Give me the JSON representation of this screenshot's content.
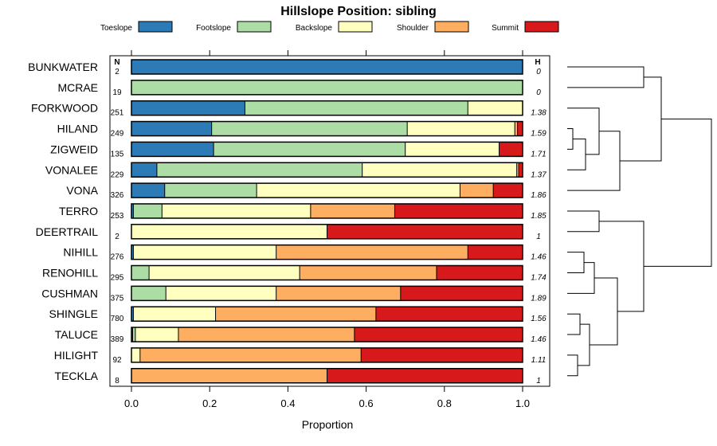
{
  "chart_data": {
    "type": "bar",
    "orientation": "horizontal",
    "stacked": true,
    "title": "Hillslope Position: sibling",
    "xlabel": "Proportion",
    "xlim": [
      0,
      1
    ],
    "xticks": [
      "0.0",
      "0.2",
      "0.4",
      "0.6",
      "0.8",
      "1.0"
    ],
    "n_header": "N",
    "h_header": "H",
    "legend": [
      {
        "name": "Toeslope",
        "color": "#2c7bb6"
      },
      {
        "name": "Footslope",
        "color": "#abdda4"
      },
      {
        "name": "Backslope",
        "color": "#ffffbf"
      },
      {
        "name": "Shoulder",
        "color": "#fdae61"
      },
      {
        "name": "Summit",
        "color": "#d7191c"
      }
    ],
    "rows": [
      {
        "name": "BUNKWATER",
        "n": "2",
        "h": "0",
        "values": [
          1.0,
          0.0,
          0.0,
          0.0,
          0.0
        ]
      },
      {
        "name": "MCRAE",
        "n": "19",
        "h": "0",
        "values": [
          0.0,
          1.0,
          0.0,
          0.0,
          0.0
        ]
      },
      {
        "name": "FORKWOOD",
        "n": "251",
        "h": "1.38",
        "values": [
          0.29,
          0.57,
          0.14,
          0.0,
          0.0
        ]
      },
      {
        "name": "HILAND",
        "n": "249",
        "h": "1.59",
        "values": [
          0.205,
          0.5,
          0.275,
          0.007,
          0.013
        ]
      },
      {
        "name": "ZIGWEID",
        "n": "135",
        "h": "1.71",
        "values": [
          0.21,
          0.49,
          0.24,
          0.0,
          0.06
        ]
      },
      {
        "name": "VONALEE",
        "n": "229",
        "h": "1.37",
        "values": [
          0.065,
          0.525,
          0.395,
          0.005,
          0.01
        ]
      },
      {
        "name": "VONA",
        "n": "326",
        "h": "1.86",
        "values": [
          0.085,
          0.235,
          0.52,
          0.085,
          0.075
        ]
      },
      {
        "name": "TERRO",
        "n": "253",
        "h": "1.85",
        "values": [
          0.005,
          0.073,
          0.38,
          0.215,
          0.327
        ]
      },
      {
        "name": "DEERTRAIL",
        "n": "2",
        "h": "1",
        "values": [
          0.0,
          0.0,
          0.5,
          0.0,
          0.5
        ]
      },
      {
        "name": "NIHILL",
        "n": "276",
        "h": "1.46",
        "values": [
          0.005,
          0.0,
          0.365,
          0.49,
          0.14
        ]
      },
      {
        "name": "RENOHILL",
        "n": "295",
        "h": "1.74",
        "values": [
          0.0,
          0.045,
          0.385,
          0.35,
          0.22
        ]
      },
      {
        "name": "CUSHMAN",
        "n": "375",
        "h": "1.89",
        "values": [
          0.0,
          0.088,
          0.282,
          0.318,
          0.312
        ]
      },
      {
        "name": "SHINGLE",
        "n": "780",
        "h": "1.56",
        "values": [
          0.005,
          0.0,
          0.21,
          0.41,
          0.375
        ]
      },
      {
        "name": "TALUCE",
        "n": "389",
        "h": "1.46",
        "values": [
          0.003,
          0.007,
          0.11,
          0.45,
          0.43
        ]
      },
      {
        "name": "HILIGHT",
        "n": "92",
        "h": "1.11",
        "values": [
          0.0,
          0.0,
          0.022,
          0.565,
          0.413
        ]
      },
      {
        "name": "TECKLA",
        "n": "8",
        "h": "1",
        "values": [
          0.0,
          0.0,
          0.0,
          0.5,
          0.5
        ]
      }
    ]
  }
}
